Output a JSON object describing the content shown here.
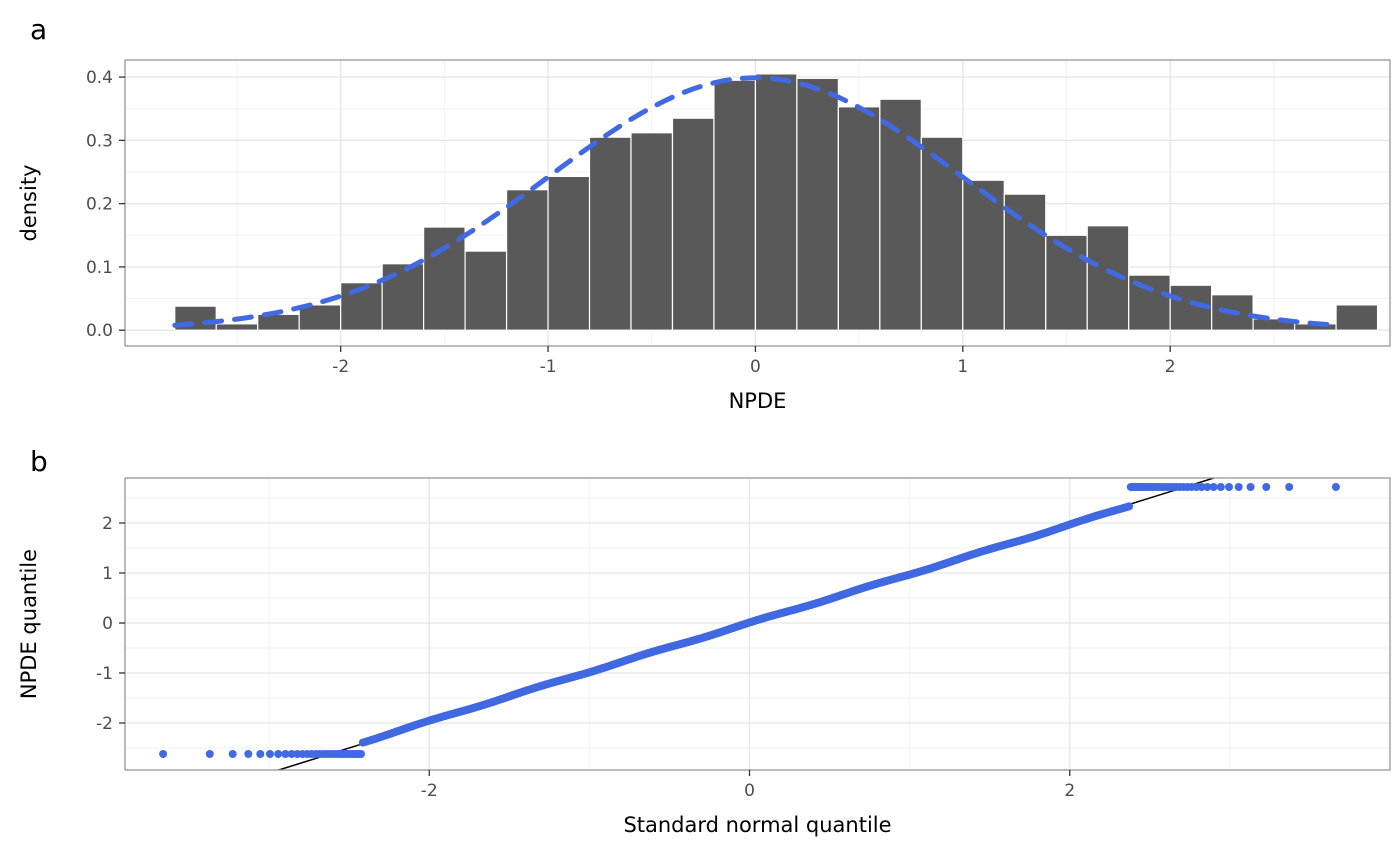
{
  "panels": {
    "a": "a",
    "b": "b"
  },
  "theme": {
    "background": "#ffffff",
    "grid_major": "#e5e5e5",
    "grid_minor": "#f2f2f2",
    "panel_border": "#969696",
    "tick_color": "#333333",
    "tick_label_color": "#4d4d4d",
    "title_color": "#000000",
    "accent_blue": "#4169e1",
    "bar_gray": "#595959"
  },
  "chart_data": [
    {
      "type": "bar",
      "subtype": "histogram",
      "panel": "a",
      "title": "",
      "xlabel": "NPDE",
      "ylabel": "density",
      "bin_width": 0.2,
      "bin_centers": [
        -2.7,
        -2.5,
        -2.3,
        -2.1,
        -1.9,
        -1.7,
        -1.5,
        -1.3,
        -1.1,
        -0.9,
        -0.7,
        -0.5,
        -0.3,
        -0.1,
        0.1,
        0.3,
        0.5,
        0.7,
        0.9,
        1.1,
        1.3,
        1.5,
        1.7,
        1.9,
        2.1,
        2.3,
        2.5,
        2.7,
        2.9
      ],
      "values": [
        0.038,
        0.01,
        0.025,
        0.04,
        0.075,
        0.105,
        0.163,
        0.125,
        0.222,
        0.243,
        0.305,
        0.312,
        0.335,
        0.395,
        0.405,
        0.398,
        0.353,
        0.365,
        0.305,
        0.237,
        0.215,
        0.15,
        0.165,
        0.087,
        0.071,
        0.056,
        0.018,
        0.01,
        0.04
      ],
      "bar_fill": "#595959",
      "bar_stroke": "#ffffff",
      "x_ticks": [
        -2,
        -1,
        0,
        1,
        2
      ],
      "x_tick_labels": [
        "-2",
        "-1",
        "0",
        "1",
        "2"
      ],
      "y_ticks": [
        0,
        0.1,
        0.2,
        0.3,
        0.4
      ],
      "y_tick_labels": [
        "0.0",
        "0.1",
        "0.2",
        "0.3",
        "0.4"
      ],
      "x_minor_ticks": [
        -2.5,
        -1.5,
        -0.5,
        0.5,
        1.5,
        2.5
      ],
      "y_minor_ticks": [
        0.05,
        0.15,
        0.25,
        0.35
      ],
      "xlim": [
        -3.04,
        3.06
      ],
      "ylim": [
        -0.025,
        0.427
      ],
      "grid": true,
      "overlay_curve": {
        "type": "normal_density",
        "mean": 0,
        "sd": 1,
        "peak": 0.3989,
        "x_range": [
          -2.8,
          2.8
        ],
        "style": "dashed",
        "color": "#4169e1",
        "width": 5
      }
    },
    {
      "type": "scatter",
      "subtype": "qq_plot",
      "panel": "b",
      "title": "",
      "xlabel": "Standard normal quantile",
      "ylabel": "NPDE quantile",
      "x_ticks": [
        -2,
        0,
        2
      ],
      "x_tick_labels": [
        "-2",
        "0",
        "2"
      ],
      "y_ticks": [
        -2,
        -1,
        0,
        1,
        2
      ],
      "y_tick_labels": [
        "-2",
        "-1",
        "0",
        "1",
        "2"
      ],
      "x_minor_ticks": [
        -3,
        -1,
        1,
        3
      ],
      "y_minor_ticks": [
        -2.5,
        -1.5,
        -0.5,
        0.5,
        1.5,
        2.5
      ],
      "xlim": [
        -3.9,
        4.0
      ],
      "ylim": [
        -2.94,
        2.9
      ],
      "grid": true,
      "point_color": "#4169e1",
      "point_radius": 4,
      "n_points": 4000,
      "identity_line": {
        "slope": 1,
        "intercept": 0,
        "color": "#000000",
        "width": 1.5
      },
      "truncation": {
        "lower_y": -2.62,
        "upper_y": 2.72,
        "lower_x": -2.42,
        "upper_x": 2.38
      },
      "wiggle": {
        "amp": 0.035,
        "freq": 0.8,
        "jitter_amp": 0.012,
        "jitter_freq": 9.1
      },
      "x_data_range": [
        -3.66,
        3.66
      ]
    }
  ]
}
